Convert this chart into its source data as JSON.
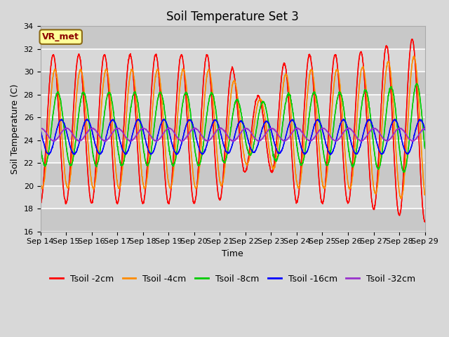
{
  "title": "Soil Temperature Set 3",
  "xlabel": "Time",
  "ylabel": "Soil Temperature (C)",
  "ylim": [
    16,
    34
  ],
  "x_tick_labels": [
    "Sep 14",
    "Sep 15",
    "Sep 16",
    "Sep 17",
    "Sep 18",
    "Sep 19",
    "Sep 20",
    "Sep 21",
    "Sep 22",
    "Sep 23",
    "Sep 24",
    "Sep 25",
    "Sep 26",
    "Sep 27",
    "Sep 28",
    "Sep 29"
  ],
  "series_names": [
    "Tsoil -2cm",
    "Tsoil -4cm",
    "Tsoil -8cm",
    "Tsoil -16cm",
    "Tsoil -32cm"
  ],
  "series_colors": [
    "#FF0000",
    "#FF8C00",
    "#00CC00",
    "#0000FF",
    "#9933CC"
  ],
  "background_color": "#D8D8D8",
  "plot_bg_color": "#D8D8D8",
  "grid_color": "#FFFFFF",
  "annotation_text": "VR_met",
  "annotation_bg": "#FFFF99",
  "annotation_border": "#8B6914",
  "title_fontsize": 12,
  "label_fontsize": 9,
  "tick_fontsize": 8,
  "legend_fontsize": 9
}
